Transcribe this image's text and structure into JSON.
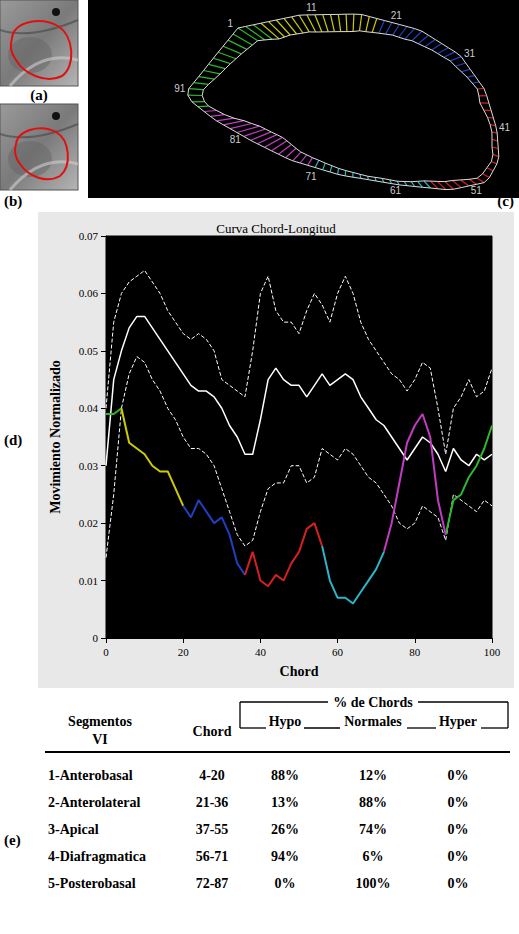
{
  "panel_labels": {
    "a": "(a)",
    "b": "(b)",
    "c": "(c)",
    "d": "(d)",
    "e": "(e)"
  },
  "contour": {
    "chord_labels": [
      "1",
      "11",
      "21",
      "31",
      "41",
      "51",
      "61",
      "71",
      "81",
      "91"
    ]
  },
  "chart_data": {
    "type": "line",
    "title": "Curva Chord-Longitud",
    "x_label": "Chord",
    "y_label": "Movimiento Normalizado",
    "xlim": [
      0,
      100
    ],
    "xticks": [
      0,
      20,
      40,
      60,
      80,
      100
    ],
    "ylim": [
      0,
      0.07
    ],
    "yticks": [
      0,
      0.01,
      0.02,
      0.03,
      0.04,
      0.05,
      0.06,
      0.07
    ],
    "grid": false,
    "x": [
      0,
      2,
      4,
      6,
      8,
      10,
      12,
      14,
      16,
      18,
      20,
      22,
      24,
      26,
      28,
      30,
      32,
      34,
      36,
      38,
      40,
      42,
      44,
      46,
      48,
      50,
      52,
      54,
      56,
      58,
      60,
      62,
      64,
      66,
      68,
      70,
      72,
      74,
      76,
      78,
      80,
      82,
      84,
      86,
      88,
      90,
      92,
      94,
      96,
      98,
      100
    ],
    "series": [
      {
        "color": "#ffffff",
        "line_style": "dashed",
        "values": [
          0.04,
          0.055,
          0.06,
          0.062,
          0.063,
          0.064,
          0.062,
          0.06,
          0.057,
          0.055,
          0.053,
          0.052,
          0.053,
          0.052,
          0.05,
          0.045,
          0.044,
          0.043,
          0.042,
          0.05,
          0.06,
          0.063,
          0.057,
          0.055,
          0.055,
          0.053,
          0.057,
          0.06,
          0.058,
          0.055,
          0.06,
          0.063,
          0.06,
          0.055,
          0.052,
          0.05,
          0.048,
          0.046,
          0.045,
          0.043,
          0.045,
          0.048,
          0.047,
          0.04,
          0.032,
          0.04,
          0.042,
          0.045,
          0.042,
          0.043,
          0.047
        ]
      },
      {
        "color": "#ffffff",
        "line_style": "solid",
        "values": [
          0.03,
          0.045,
          0.05,
          0.054,
          0.056,
          0.056,
          0.054,
          0.052,
          0.05,
          0.048,
          0.046,
          0.044,
          0.043,
          0.043,
          0.042,
          0.04,
          0.037,
          0.035,
          0.032,
          0.032,
          0.038,
          0.045,
          0.047,
          0.045,
          0.044,
          0.044,
          0.042,
          0.044,
          0.046,
          0.044,
          0.045,
          0.046,
          0.045,
          0.042,
          0.04,
          0.038,
          0.037,
          0.035,
          0.033,
          0.031,
          0.033,
          0.035,
          0.034,
          0.032,
          0.029,
          0.033,
          0.031,
          0.03,
          0.032,
          0.031,
          0.032
        ]
      },
      {
        "color": "#ffffff",
        "line_style": "dashed",
        "values": [
          0.014,
          0.025,
          0.04,
          0.046,
          0.049,
          0.048,
          0.045,
          0.043,
          0.04,
          0.038,
          0.035,
          0.033,
          0.033,
          0.032,
          0.03,
          0.026,
          0.022,
          0.018,
          0.016,
          0.017,
          0.022,
          0.026,
          0.027,
          0.027,
          0.03,
          0.03,
          0.027,
          0.028,
          0.033,
          0.032,
          0.031,
          0.033,
          0.032,
          0.03,
          0.028,
          0.027,
          0.025,
          0.023,
          0.02,
          0.019,
          0.02,
          0.023,
          0.022,
          0.021,
          0.017,
          0.025,
          0.024,
          0.023,
          0.022,
          0.024,
          0.023
        ]
      },
      {
        "color": "#2eb82e",
        "line_style": "solid",
        "values": [
          0.039,
          0.039,
          0.04,
          null,
          null,
          null,
          null,
          null,
          null,
          null,
          null,
          null,
          null,
          null,
          null,
          null,
          null,
          null,
          null,
          null,
          null,
          null,
          null,
          null,
          null,
          null,
          null,
          null,
          null,
          null,
          null,
          null,
          null,
          null,
          null,
          null,
          null,
          null,
          null,
          null,
          null,
          null,
          null,
          null,
          0.018,
          0.024,
          0.025,
          0.028,
          0.03,
          0.033,
          0.037
        ]
      },
      {
        "color": "#cccc00",
        "line_style": "solid",
        "values": [
          null,
          null,
          0.04,
          0.034,
          0.033,
          0.032,
          0.03,
          0.029,
          0.029,
          0.026,
          0.023,
          null,
          null,
          null,
          null,
          null,
          null,
          null,
          null,
          null,
          null,
          null,
          null,
          null,
          null,
          null,
          null,
          null,
          null,
          null,
          null,
          null,
          null,
          null,
          null,
          null,
          null,
          null,
          null,
          null,
          null,
          null,
          null,
          null,
          null,
          null,
          null,
          null,
          null,
          null,
          null
        ]
      },
      {
        "color": "#1f3fbf",
        "line_style": "solid",
        "values": [
          null,
          null,
          null,
          null,
          null,
          null,
          null,
          null,
          null,
          null,
          0.023,
          0.021,
          0.024,
          0.022,
          0.02,
          0.021,
          0.018,
          0.013,
          0.011,
          null,
          null,
          null,
          null,
          null,
          null,
          null,
          null,
          null,
          null,
          null,
          null,
          null,
          null,
          null,
          null,
          null,
          null,
          null,
          null,
          null,
          null,
          null,
          null,
          null,
          null,
          null,
          null,
          null,
          null,
          null,
          null
        ]
      },
      {
        "color": "#d42020",
        "line_style": "solid",
        "values": [
          null,
          null,
          null,
          null,
          null,
          null,
          null,
          null,
          null,
          null,
          null,
          null,
          null,
          null,
          null,
          null,
          null,
          null,
          0.011,
          0.015,
          0.01,
          0.009,
          0.011,
          0.01,
          0.013,
          0.015,
          0.019,
          0.02,
          0.016,
          null,
          null,
          null,
          null,
          null,
          null,
          null,
          null,
          null,
          null,
          null,
          null,
          null,
          null,
          null,
          null,
          null,
          null,
          null,
          null,
          null,
          null
        ]
      },
      {
        "color": "#29b6c8",
        "line_style": "solid",
        "values": [
          null,
          null,
          null,
          null,
          null,
          null,
          null,
          null,
          null,
          null,
          null,
          null,
          null,
          null,
          null,
          null,
          null,
          null,
          null,
          null,
          null,
          null,
          null,
          null,
          null,
          null,
          null,
          null,
          0.016,
          0.01,
          0.007,
          0.007,
          0.006,
          0.008,
          0.01,
          0.012,
          0.015,
          null,
          null,
          null,
          null,
          null,
          null,
          null,
          null,
          null,
          null,
          null,
          null,
          null,
          null
        ]
      },
      {
        "color": "#c03cc0",
        "line_style": "solid",
        "values": [
          null,
          null,
          null,
          null,
          null,
          null,
          null,
          null,
          null,
          null,
          null,
          null,
          null,
          null,
          null,
          null,
          null,
          null,
          null,
          null,
          null,
          null,
          null,
          null,
          null,
          null,
          null,
          null,
          null,
          null,
          null,
          null,
          null,
          null,
          null,
          null,
          0.015,
          0.02,
          0.027,
          0.034,
          0.037,
          0.039,
          0.035,
          0.024,
          0.018,
          null,
          null,
          null,
          null,
          null,
          null
        ]
      }
    ]
  },
  "table": {
    "segment_header": [
      "Segmentos",
      "VI"
    ],
    "chord_header": "Chord",
    "group_header": "% de Chords",
    "columns": [
      "Hypo",
      "Normales",
      "Hyper"
    ],
    "rows": [
      [
        "1-Anterobasal",
        "4-20",
        "88%",
        "12%",
        "0%"
      ],
      [
        "2-Anterolateral",
        "21-36",
        "13%",
        "88%",
        "0%"
      ],
      [
        "3-Apical",
        "37-55",
        "26%",
        "74%",
        "0%"
      ],
      [
        "4-Diafragmatica",
        "56-71",
        "94%",
        "6%",
        "0%"
      ],
      [
        "5-Posterobasal",
        "72-87",
        "0%",
        "100%",
        "0%"
      ]
    ]
  }
}
